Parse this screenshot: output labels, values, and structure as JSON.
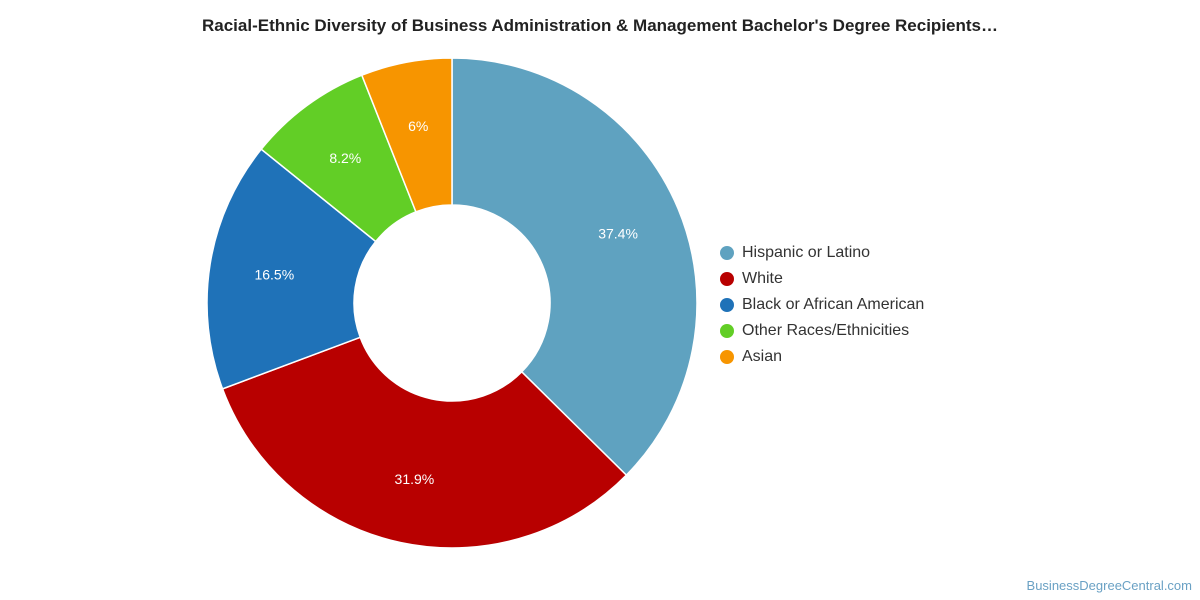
{
  "chart_data": {
    "type": "pie",
    "title": "Racial-Ethnic Diversity of Business Administration & Management Bachelor's Degree Recipients…",
    "legend_position": "right",
    "slices": [
      {
        "name": "Hispanic or Latino",
        "value": 37.4,
        "label": "37.4%",
        "color": "#5fa2c0"
      },
      {
        "name": "White",
        "value": 31.9,
        "label": "31.9%",
        "color": "#b80000"
      },
      {
        "name": "Black or African American",
        "value": 16.5,
        "label": "16.5%",
        "color": "#1f72b8"
      },
      {
        "name": "Other Races/Ethnicities",
        "value": 8.2,
        "label": "8.2%",
        "color": "#62ce26"
      },
      {
        "name": "Asian",
        "value": 6.0,
        "label": "6%",
        "color": "#f79500"
      }
    ]
  },
  "watermark": "BusinessDegreeCentral.com"
}
